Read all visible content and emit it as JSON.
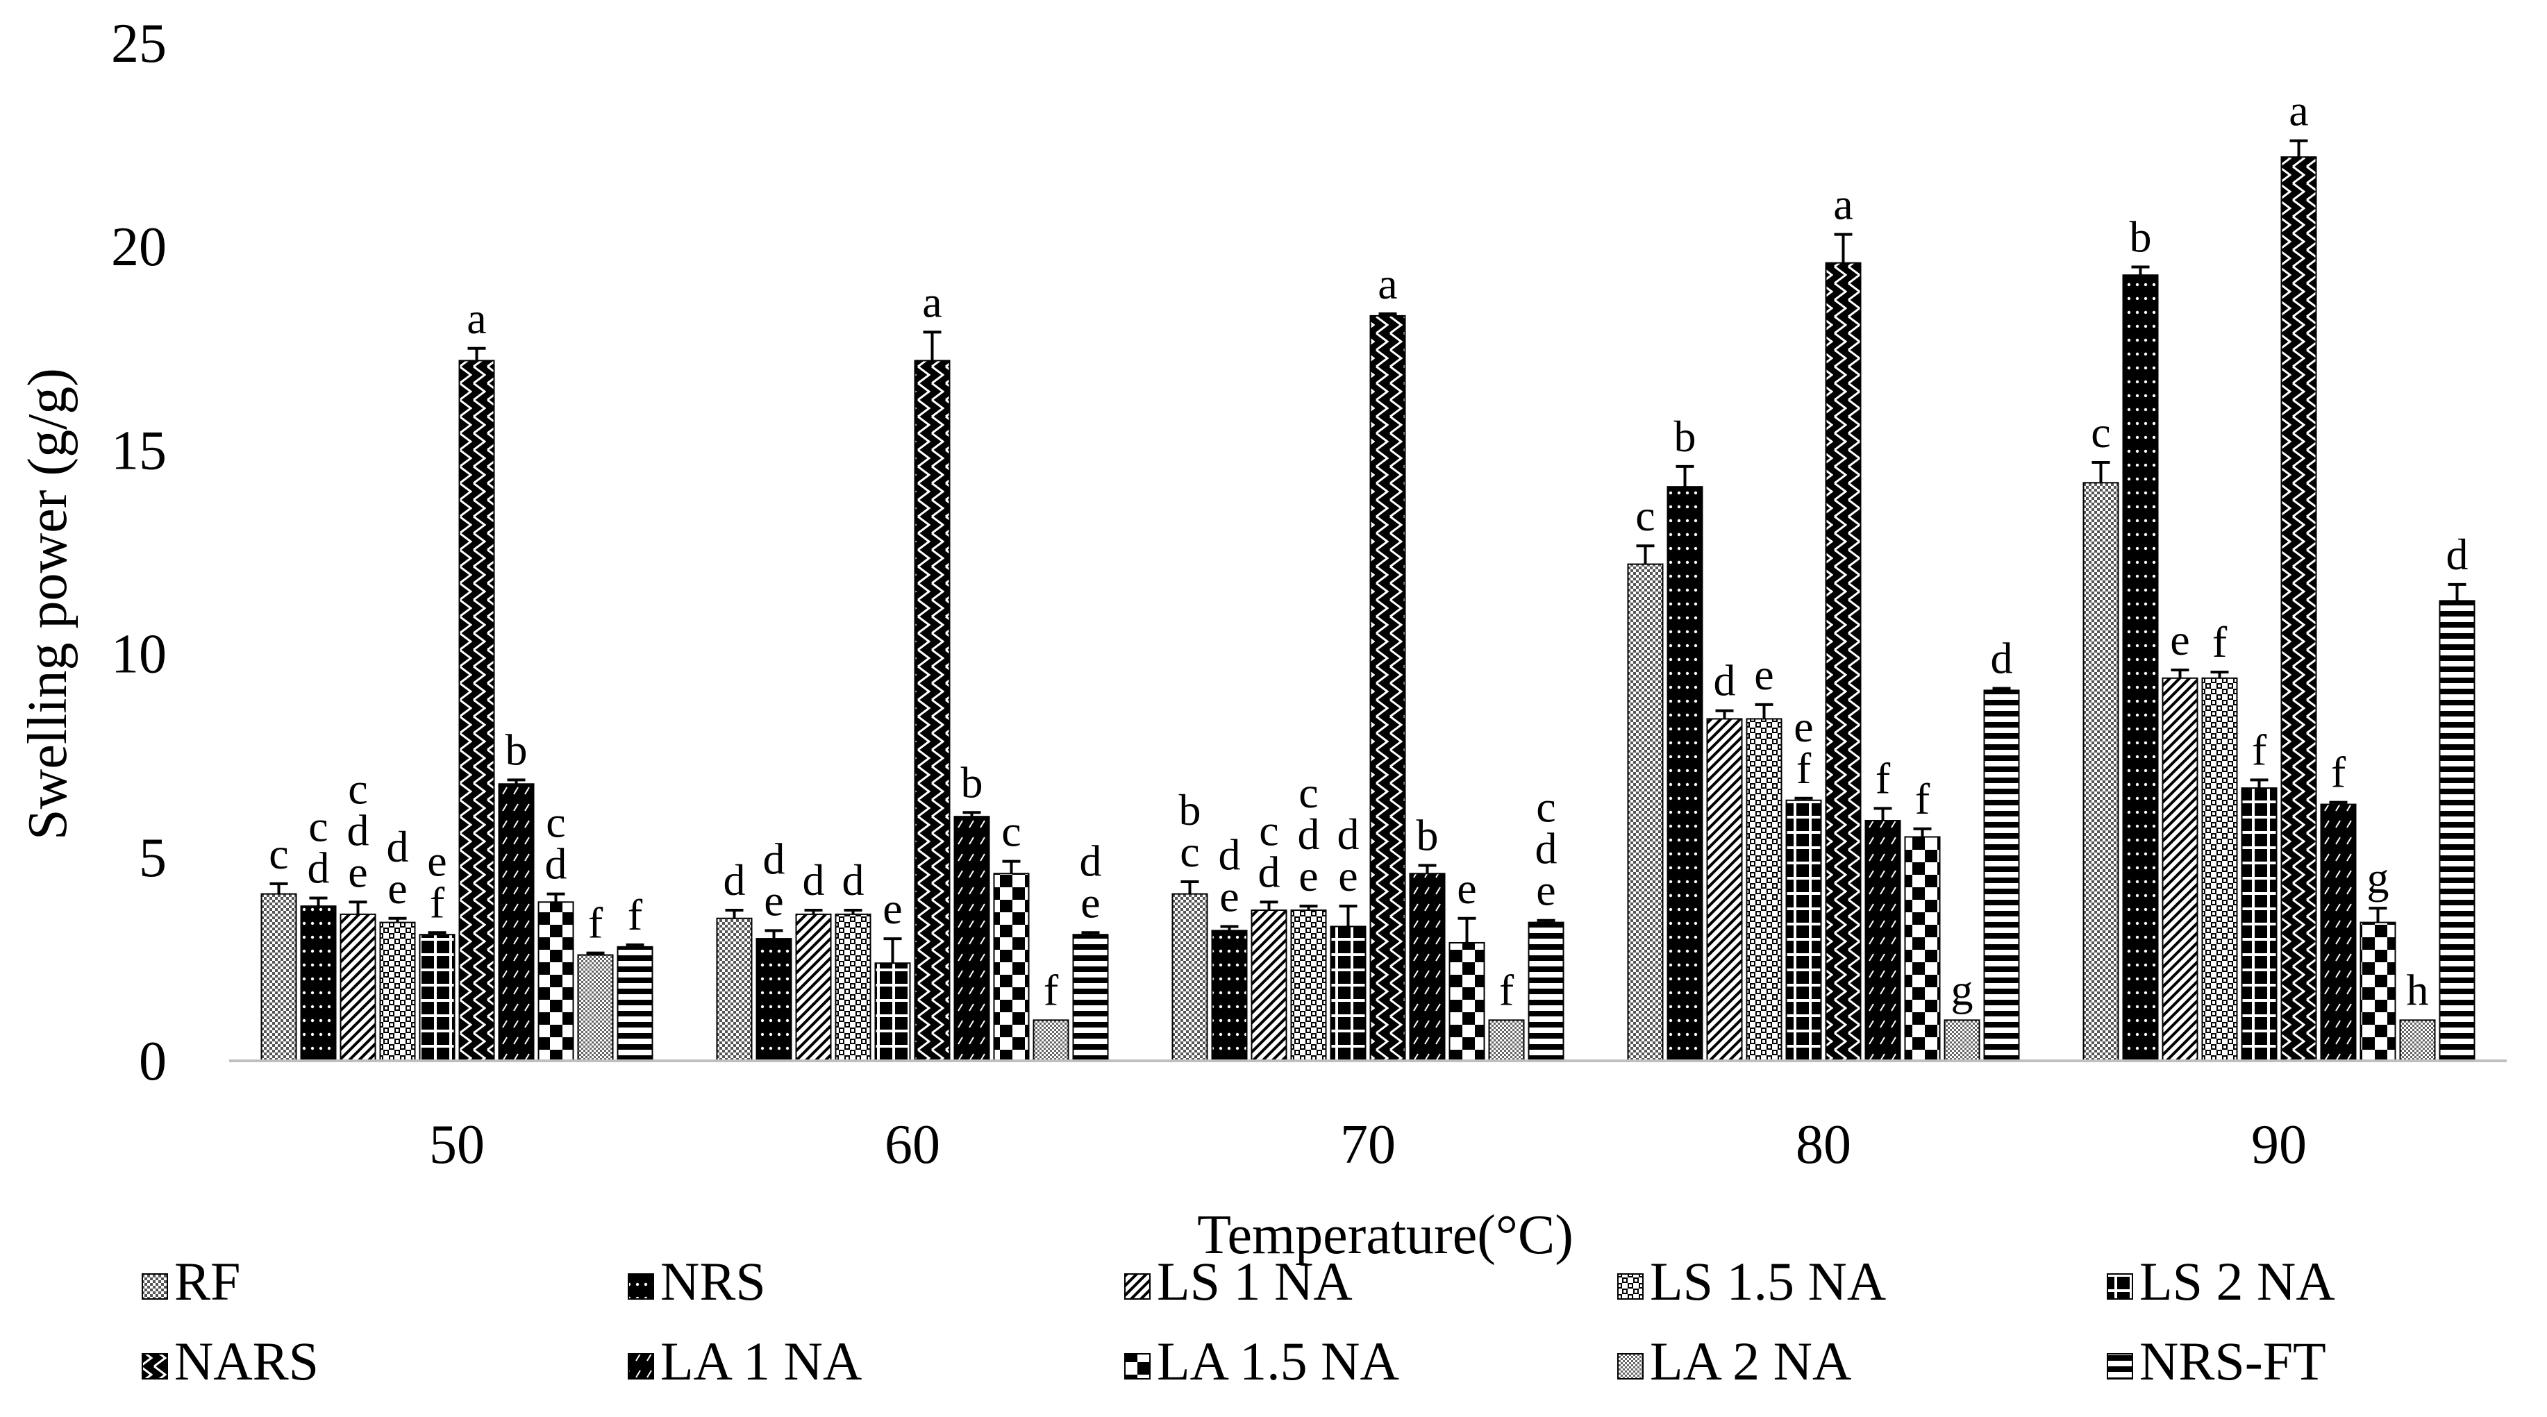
{
  "chart_data": {
    "type": "bar",
    "title": "",
    "xlabel": "Temperature(°C)",
    "ylabel": "Swelling power (g/g)",
    "ylim": [
      0,
      25
    ],
    "yticks": [
      "0",
      "5",
      "10",
      "15",
      "20",
      "25"
    ],
    "categories": [
      "50",
      "60",
      "70",
      "80",
      "90"
    ],
    "gridlines": false,
    "legend_position": "bottom",
    "series": [
      {
        "name": "RF",
        "pattern": "dots",
        "values": [
          4.1,
          3.5,
          4.1,
          12.2,
          14.2
        ],
        "errors": [
          0.25,
          0.2,
          0.3,
          0.45,
          0.5
        ],
        "labels": [
          "c",
          "d",
          "b\nc",
          "c",
          "c"
        ]
      },
      {
        "name": "NRS",
        "pattern": "solid-dots",
        "values": [
          3.8,
          3.0,
          3.2,
          14.1,
          19.3
        ],
        "errors": [
          0.2,
          0.2,
          0.1,
          0.5,
          0.2
        ],
        "labels": [
          "c\nd",
          "d\ne",
          "d\ne",
          "b",
          "b"
        ]
      },
      {
        "name": "LS 1 NA",
        "pattern": "diagonal",
        "values": [
          3.6,
          3.6,
          3.7,
          8.4,
          9.4
        ],
        "errors": [
          0.3,
          0.1,
          0.2,
          0.2,
          0.2
        ],
        "labels": [
          "c\nd\ne",
          "d",
          "c\nd",
          "d",
          "e"
        ]
      },
      {
        "name": "LS 1.5 NA",
        "pattern": "checker",
        "values": [
          3.4,
          3.6,
          3.7,
          8.4,
          9.4
        ],
        "errors": [
          0.1,
          0.1,
          0.1,
          0.35,
          0.15
        ],
        "labels": [
          "d\ne",
          "d",
          "c\nd\ne",
          "e",
          "f"
        ]
      },
      {
        "name": "LS 2 NA",
        "pattern": "grid",
        "values": [
          3.1,
          2.4,
          3.3,
          6.4,
          6.7
        ],
        "errors": [
          0.05,
          0.6,
          0.5,
          0.05,
          0.2
        ],
        "labels": [
          "e\nf",
          "e",
          "d\ne",
          "e\nf",
          "f"
        ]
      },
      {
        "name": "NARS",
        "pattern": "zigzag",
        "values": [
          17.2,
          17.2,
          18.3,
          19.6,
          22.2
        ],
        "errors": [
          0.3,
          0.7,
          0.05,
          0.7,
          0.4
        ],
        "labels": [
          "a",
          "a",
          "a",
          "a",
          "a"
        ]
      },
      {
        "name": "LA 1 NA",
        "pattern": "diagonal-dark",
        "values": [
          6.8,
          6.0,
          4.6,
          5.9,
          6.3
        ],
        "errors": [
          0.1,
          0.1,
          0.2,
          0.3,
          0.05
        ],
        "labels": [
          "b",
          "b",
          "b",
          "f",
          "f"
        ]
      },
      {
        "name": "LA 1.5 NA",
        "pattern": "checker-large",
        "values": [
          3.9,
          4.6,
          2.9,
          5.5,
          3.4
        ],
        "errors": [
          0.2,
          0.3,
          0.6,
          0.2,
          0.35
        ],
        "labels": [
          "c\nd",
          "c",
          "e",
          "f",
          "g"
        ]
      },
      {
        "name": "LA 2 NA",
        "pattern": "dots-fine",
        "values": [
          2.6,
          1.0,
          1.0,
          1.0,
          1.0
        ],
        "errors": [
          0.05,
          0,
          0,
          0,
          0
        ],
        "labels": [
          "f",
          "f",
          "f",
          "g",
          "h"
        ]
      },
      {
        "name": "NRS-FT",
        "pattern": "horizontal",
        "values": [
          2.8,
          3.1,
          3.4,
          9.1,
          11.3
        ],
        "errors": [
          0.05,
          0.05,
          0.05,
          0.05,
          0.4
        ],
        "labels": [
          "f",
          "d\ne",
          "c\nd\ne",
          "d",
          "d"
        ]
      }
    ]
  }
}
